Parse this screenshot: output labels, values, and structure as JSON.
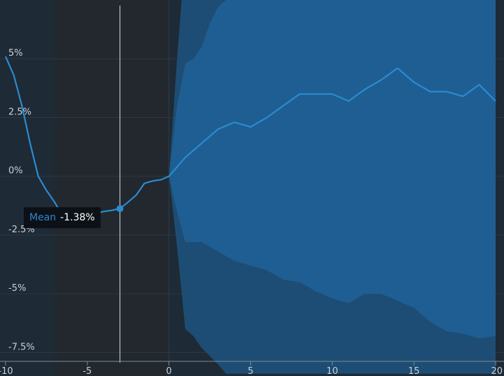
{
  "colors": {
    "background": "#1e2a35",
    "plot_dark": "#22282d",
    "band_outer": "#1d4f78",
    "band_inner": "#1f5f95",
    "line": "#2a8bd1",
    "grid": "#2c3946",
    "crosshair": "#aeb6be",
    "tooltip_bg": "#0c1117"
  },
  "tooltip": {
    "label": "Mean",
    "value": "-1.38%"
  },
  "chart_data": {
    "type": "area",
    "x_ticks": [
      "-10",
      "-5",
      "0",
      "5",
      "10",
      "15",
      "20"
    ],
    "y_ticks": [
      "5%",
      "2.5%",
      "0%",
      "-2.5%",
      "-5%",
      "-7.5%"
    ],
    "xlim": [
      -10,
      20
    ],
    "ylim": [
      -8.5,
      7.5
    ],
    "crosshair_x": -3,
    "highlight_point": {
      "x": -3,
      "y": -1.38
    },
    "series": [
      {
        "name": "Mean",
        "points": [
          [
            -10,
            5.1
          ],
          [
            -9.5,
            4.3
          ],
          [
            -9,
            3.0
          ],
          [
            -8.5,
            1.4
          ],
          [
            -8,
            0.0
          ],
          [
            -7.5,
            -0.6
          ],
          [
            -7,
            -1.1
          ],
          [
            -6.5,
            -1.7
          ],
          [
            -6,
            -2.0
          ],
          [
            -5.5,
            -1.8
          ],
          [
            -5,
            -1.6
          ],
          [
            -4.5,
            -1.6
          ],
          [
            -4,
            -1.5
          ],
          [
            -3.5,
            -1.45
          ],
          [
            -3,
            -1.38
          ],
          [
            -2.5,
            -1.1
          ],
          [
            -2,
            -0.8
          ],
          [
            -1.5,
            -0.3
          ],
          [
            -1,
            -0.2
          ],
          [
            -0.5,
            -0.15
          ],
          [
            0,
            0.0
          ],
          [
            1,
            0.8
          ],
          [
            2,
            1.4
          ],
          [
            3,
            2.0
          ],
          [
            4,
            2.3
          ],
          [
            5,
            2.1
          ],
          [
            6,
            2.5
          ],
          [
            7,
            3.0
          ],
          [
            8,
            3.5
          ],
          [
            9,
            3.5
          ],
          [
            10,
            3.5
          ],
          [
            11,
            3.2
          ],
          [
            12,
            3.7
          ],
          [
            13,
            4.1
          ],
          [
            14,
            4.6
          ],
          [
            15,
            4.0
          ],
          [
            16,
            3.6
          ],
          [
            17,
            3.6
          ],
          [
            18,
            3.4
          ],
          [
            19,
            3.9
          ],
          [
            20,
            3.2
          ]
        ]
      }
    ],
    "bands": [
      {
        "kind": "outer",
        "upper": [
          [
            0,
            0.0
          ],
          [
            0.5,
            5.0
          ],
          [
            1,
            9.5
          ],
          [
            1.5,
            12.0
          ],
          [
            2,
            12.0
          ],
          [
            3,
            12.0
          ],
          [
            3.5,
            12.0
          ],
          [
            20,
            12.0
          ]
        ],
        "lower": [
          [
            0,
            0.0
          ],
          [
            0.5,
            -3.0
          ],
          [
            1,
            -6.5
          ],
          [
            1.5,
            -6.8
          ],
          [
            2,
            -7.3
          ],
          [
            3,
            -8.0
          ],
          [
            3.5,
            -8.4
          ],
          [
            20,
            -8.4
          ]
        ]
      },
      {
        "kind": "inner",
        "upper": [
          [
            0,
            0.0
          ],
          [
            0.5,
            3.0
          ],
          [
            1,
            4.8
          ],
          [
            1.5,
            5.0
          ],
          [
            2,
            5.5
          ],
          [
            2.5,
            6.5
          ],
          [
            3,
            7.2
          ],
          [
            3.5,
            7.5
          ],
          [
            4,
            7.5
          ],
          [
            20,
            7.5
          ]
        ],
        "lower": [
          [
            0,
            0.0
          ],
          [
            0.5,
            -1.5
          ],
          [
            1,
            -2.8
          ],
          [
            2,
            -2.8
          ],
          [
            3,
            -3.2
          ],
          [
            4,
            -3.6
          ],
          [
            5,
            -3.8
          ],
          [
            6,
            -4.0
          ],
          [
            7,
            -4.4
          ],
          [
            8,
            -4.5
          ],
          [
            9,
            -4.9
          ],
          [
            10,
            -5.2
          ],
          [
            11,
            -5.4
          ],
          [
            12,
            -5.0
          ],
          [
            13,
            -5.0
          ],
          [
            14,
            -5.3
          ],
          [
            15,
            -5.6
          ],
          [
            16,
            -6.2
          ],
          [
            17,
            -6.6
          ],
          [
            18,
            -6.7
          ],
          [
            19,
            -6.9
          ],
          [
            20,
            -6.8
          ]
        ]
      }
    ]
  }
}
